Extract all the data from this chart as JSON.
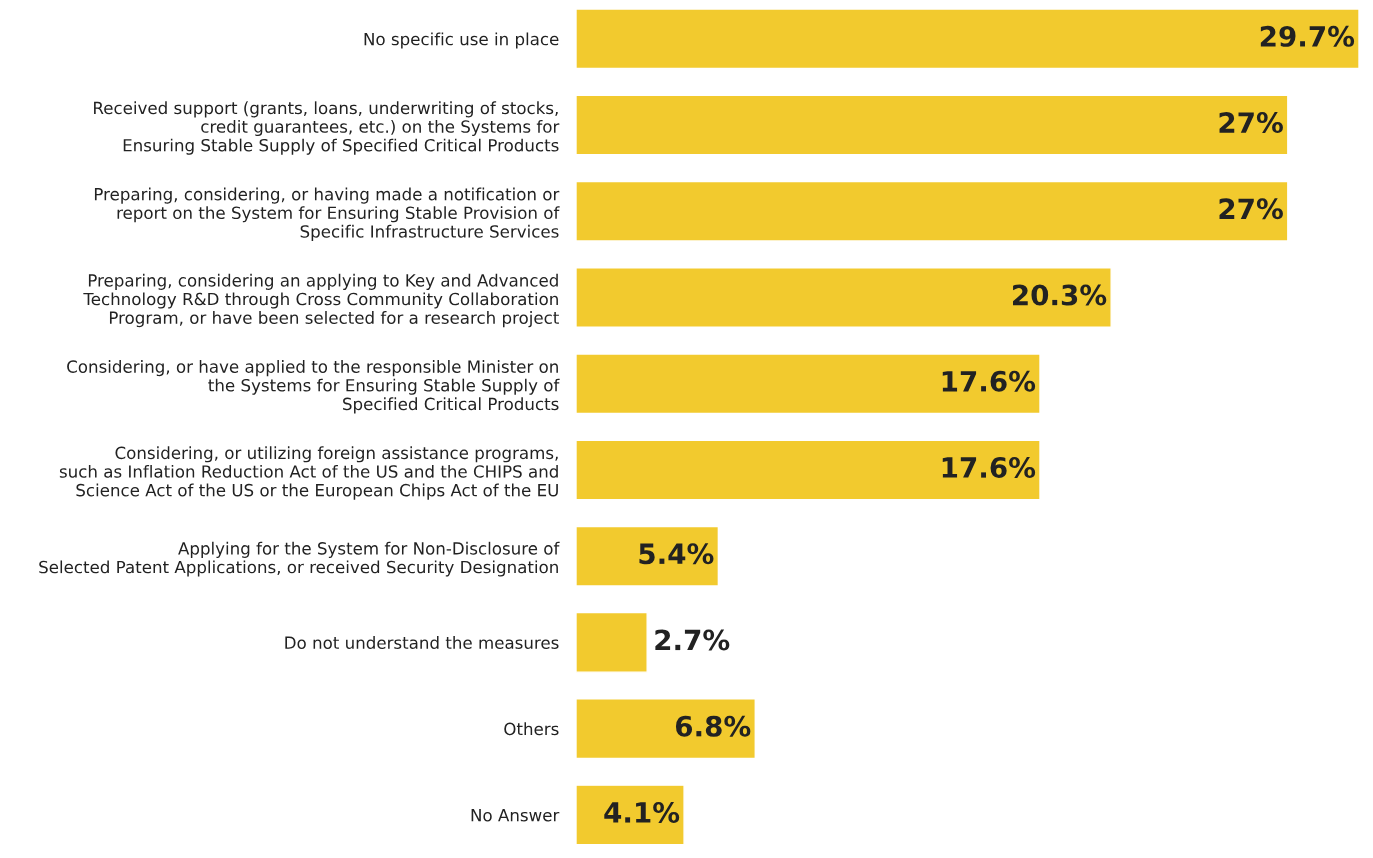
{
  "chart_data": {
    "type": "bar",
    "orientation": "horizontal",
    "categories": [
      "No specific use in place",
      "Received support (grants, loans, underwriting of stocks,\ncredit guarantees, etc.) on the Systems for\nEnsuring Stable Supply of Specified Critical Products",
      "Preparing, considering, or having made a notification or\nreport on the System for Ensuring Stable Provision of\nSpecific Infrastructure Services",
      "Preparing, considering an applying to Key and Advanced\nTechnology R&D through Cross Community Collaboration\nProgram, or have been selected for a research project",
      "Considering, or have applied to the responsible Minister on\nthe Systems for Ensuring Stable Supply of\nSpecified Critical Products",
      "Considering, or utilizing foreign assistance programs,\nsuch as Inflation Reduction Act of the US and the CHIPS and\nScience Act of the US or the European Chips Act of the EU",
      "Applying for the System for Non-Disclosure of\nSelected Patent Applications, or received Security Designation",
      "Do not understand the measures",
      "Others",
      "No Answer"
    ],
    "values": [
      29.7,
      27,
      27,
      20.3,
      17.6,
      17.6,
      5.4,
      2.7,
      6.8,
      4.1
    ],
    "value_labels": [
      "29.7%",
      "27%",
      "27%",
      "20.3%",
      "17.6%",
      "17.6%",
      "5.4%",
      "2.7%",
      "6.8%",
      "4.1%"
    ],
    "color": "#f2ca2e",
    "tick_labels": "y",
    "grid": false,
    "legend": false
  }
}
